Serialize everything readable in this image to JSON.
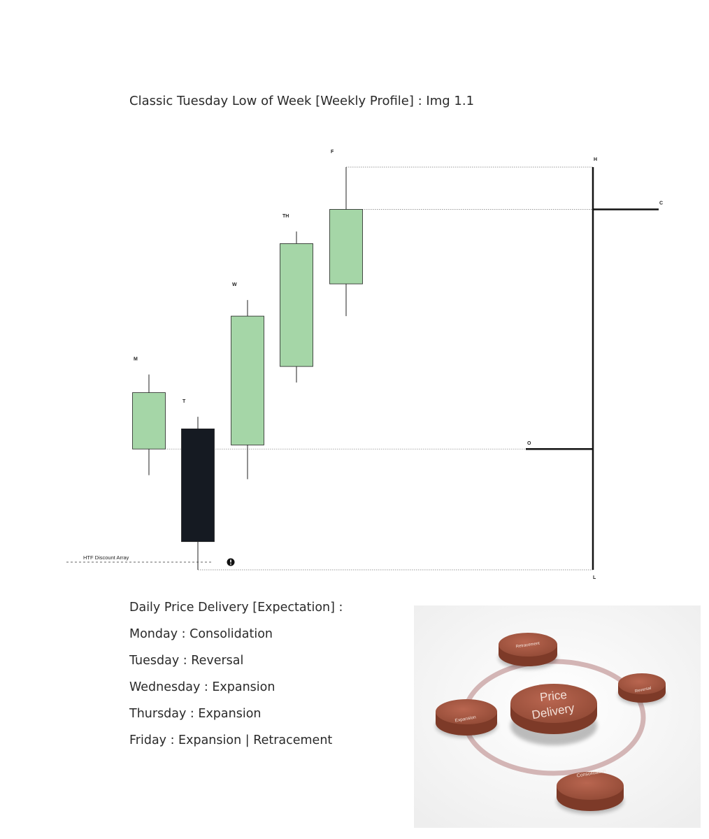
{
  "page": {
    "title": "Classic Tuesday Low of Week [Weekly Profile] : Img 1.1"
  },
  "chart_data": {
    "type": "candlestick",
    "title": "Classic Tuesday Low of Week [Weekly Profile] : Img 1.1",
    "y_range": [
      0,
      100
    ],
    "candles": [
      {
        "label": "M",
        "open": 30.0,
        "close": 44.0,
        "high": 48.5,
        "low": 23.5,
        "color": "#a5d6a7"
      },
      {
        "label": "T",
        "open": 35.0,
        "close": 7.0,
        "high": 38.0,
        "low": 0.0,
        "color": "#151a22"
      },
      {
        "label": "W",
        "open": 31.0,
        "close": 63.0,
        "high": 67.0,
        "low": 22.5,
        "color": "#a5d6a7"
      },
      {
        "label": "TH",
        "open": 50.5,
        "close": 81.0,
        "high": 84.0,
        "low": 46.5,
        "color": "#a5d6a7"
      },
      {
        "label": "F",
        "open": 71.0,
        "close": 89.5,
        "high": 100.0,
        "low": 63.0,
        "color": "#a5d6a7"
      }
    ],
    "weekly_bar": {
      "open_label": "O",
      "close_label": "C",
      "high_label": "H",
      "low_label": "L",
      "open": 30.0,
      "close": 89.5,
      "high": 100.0,
      "low": 0.0
    },
    "annotations": [
      {
        "text": "HTF Discount Array",
        "value": 2.2,
        "style": "dashed"
      }
    ],
    "marker": "exclamation-icon"
  },
  "expectation": {
    "heading": "Daily Price Delivery [Expectation] :",
    "days": [
      "Monday : Consolidation",
      "Tuesday : Reversal",
      "Wednesday : Expansion",
      "Thursday : Expansion",
      "Friday : Expansion | Retracement"
    ]
  },
  "cycle": {
    "center_line1": "Price",
    "center_line2": "Delivery",
    "nodes": {
      "top": "Retracement",
      "right": "Reversal",
      "bottom": "Consolidation",
      "left": "Expansion"
    },
    "colors": {
      "disc": "#a8583f",
      "ring": "#d3b5b5"
    }
  }
}
